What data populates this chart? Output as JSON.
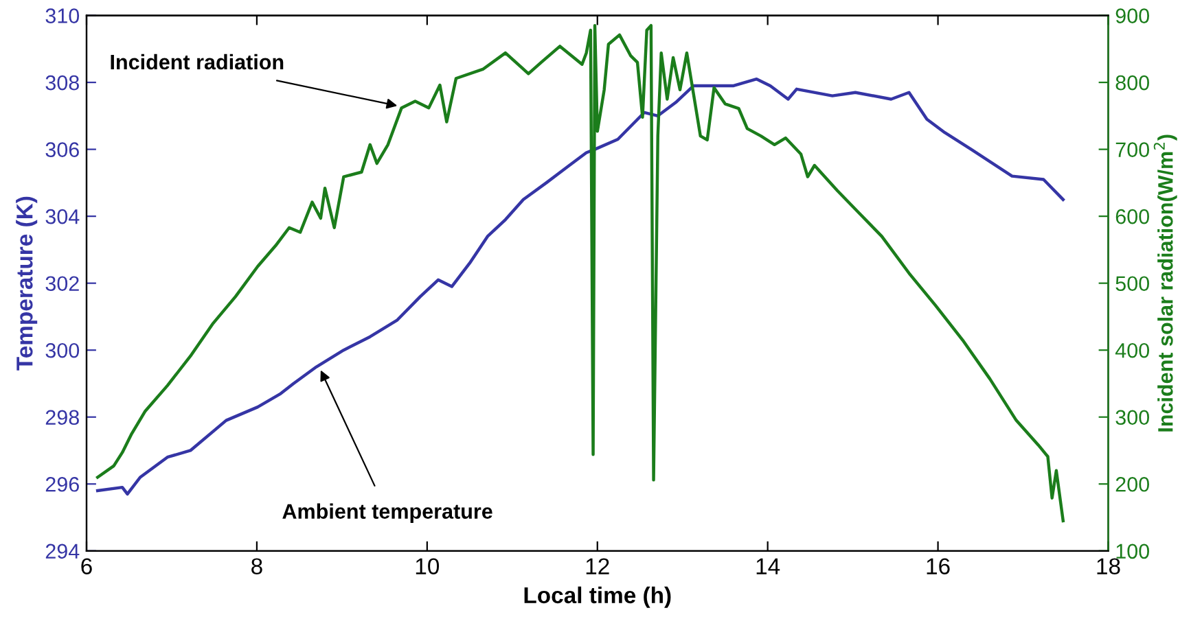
{
  "chart_data": {
    "type": "line",
    "xlabel": "Local time (h)",
    "ylabel": "Temperature (K)",
    "y2label": "Incident solar radiation(W/m$^{2}$)",
    "xlim": [
      6,
      18
    ],
    "xticks": [
      6,
      8,
      10,
      12,
      14,
      16,
      18
    ],
    "ylim": [
      294,
      310
    ],
    "yticks": [
      294,
      296,
      298,
      300,
      302,
      304,
      306,
      308,
      310
    ],
    "y2lim": [
      100,
      900
    ],
    "y2ticks": [
      100,
      200,
      300,
      400,
      500,
      600,
      700,
      800,
      900
    ],
    "grid": false,
    "legend": false,
    "marker": "none",
    "line_style": "solid",
    "annotations": [
      {
        "text": "Incident radiation",
        "x": 9.65,
        "y": 307.3
      },
      {
        "text": "Ambient temperature",
        "x": 8.75,
        "y": 299.4
      }
    ],
    "series": [
      {
        "color": "#3535a5",
        "x": [
          6.13,
          6.42,
          6.48,
          6.63,
          6.95,
          7.22,
          7.64,
          8.01,
          8.28,
          8.43,
          8.7,
          9.02,
          9.33,
          9.65,
          9.92,
          10.13,
          10.29,
          10.5,
          10.71,
          10.92,
          11.13,
          11.4,
          11.66,
          11.87,
          11.97,
          12.24,
          12.55,
          12.71,
          12.92,
          13.13,
          13.45,
          13.6,
          13.87,
          14.03,
          14.24,
          14.34,
          14.76,
          15.03,
          15.45,
          15.66,
          15.87,
          16.08,
          16.39,
          16.87,
          17.24,
          17.47
        ],
        "values": [
          295.8,
          295.9,
          295.7,
          296.2,
          296.8,
          297.0,
          297.9,
          298.3,
          298.7,
          299.0,
          299.5,
          300.0,
          300.4,
          300.9,
          301.6,
          302.1,
          301.9,
          302.6,
          303.4,
          303.9,
          304.5,
          305.0,
          305.5,
          305.9,
          306.0,
          306.3,
          307.1,
          307.0,
          307.4,
          307.9,
          307.9,
          307.9,
          308.1,
          307.9,
          307.5,
          307.8,
          307.6,
          307.7,
          307.5,
          307.7,
          306.9,
          306.5,
          306.0,
          305.2,
          305.1,
          304.5
        ]
      },
      {
        "color": "#1b7d1b",
        "axis": "y2",
        "x": [
          6.13,
          6.32,
          6.42,
          6.53,
          6.69,
          6.95,
          7.22,
          7.48,
          7.75,
          8.01,
          8.22,
          8.38,
          8.51,
          8.65,
          8.75,
          8.8,
          8.91,
          9.02,
          9.23,
          9.33,
          9.41,
          9.54,
          9.7,
          9.86,
          10.02,
          10.15,
          10.23,
          10.34,
          10.66,
          10.92,
          11.19,
          11.34,
          11.56,
          11.82,
          11.87,
          11.92,
          11.95,
          11.97,
          12.0,
          12.08,
          12.13,
          12.26,
          12.39,
          12.47,
          12.53,
          12.58,
          12.63,
          12.66,
          12.71,
          12.75,
          12.82,
          12.89,
          12.97,
          13.05,
          13.13,
          13.21,
          13.29,
          13.37,
          13.5,
          13.66,
          13.76,
          13.92,
          14.08,
          14.21,
          14.39,
          14.47,
          14.55,
          14.82,
          15.08,
          15.34,
          15.66,
          15.97,
          16.29,
          16.61,
          16.92,
          17.18,
          17.29,
          17.34,
          17.39,
          17.47
        ],
        "values": [
          210,
          227,
          247,
          275,
          309,
          347,
          391,
          439,
          480,
          525,
          556,
          583,
          576,
          621,
          597,
          642,
          583,
          659,
          666,
          707,
          679,
          707,
          762,
          772,
          762,
          796,
          741,
          806,
          820,
          844,
          813,
          830,
          854,
          827,
          844,
          878,
          244,
          885,
          727,
          789,
          857,
          871,
          840,
          830,
          748,
          878,
          885,
          206,
          720,
          844,
          775,
          837,
          789,
          844,
          782,
          720,
          714,
          792,
          768,
          761,
          731,
          720,
          707,
          717,
          693,
          659,
          676,
          638,
          604,
          570,
          515,
          467,
          415,
          357,
          295,
          258,
          241,
          179,
          220,
          145
        ]
      }
    ]
  }
}
